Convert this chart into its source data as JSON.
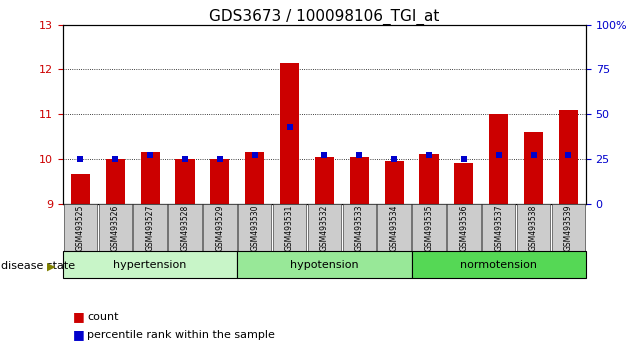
{
  "title": "GDS3673 / 100098106_TGI_at",
  "samples": [
    "GSM493525",
    "GSM493526",
    "GSM493527",
    "GSM493528",
    "GSM493529",
    "GSM493530",
    "GSM493531",
    "GSM493532",
    "GSM493533",
    "GSM493534",
    "GSM493535",
    "GSM493536",
    "GSM493537",
    "GSM493538",
    "GSM493539"
  ],
  "count_values": [
    9.65,
    10.0,
    10.15,
    10.0,
    10.0,
    10.15,
    12.15,
    10.05,
    10.05,
    9.95,
    10.1,
    9.9,
    11.0,
    10.6,
    11.1
  ],
  "percentile_values": [
    25,
    25,
    27,
    25,
    25,
    27,
    43,
    27,
    27,
    25,
    27,
    25,
    27,
    27,
    27
  ],
  "groups": [
    {
      "label": "hypertension",
      "start": 0,
      "end": 5,
      "color": "#c8f5c8"
    },
    {
      "label": "hypotension",
      "start": 5,
      "end": 10,
      "color": "#98e898"
    },
    {
      "label": "normotension",
      "start": 10,
      "end": 15,
      "color": "#55d855"
    }
  ],
  "ylim_left": [
    9,
    13
  ],
  "ylim_right": [
    0,
    100
  ],
  "yticks_left": [
    9,
    10,
    11,
    12,
    13
  ],
  "yticks_right": [
    0,
    25,
    50,
    75,
    100
  ],
  "bar_color": "#cc0000",
  "dot_color": "#0000cc",
  "title_fontsize": 11,
  "tick_fontsize": 8,
  "bar_width": 0.55
}
